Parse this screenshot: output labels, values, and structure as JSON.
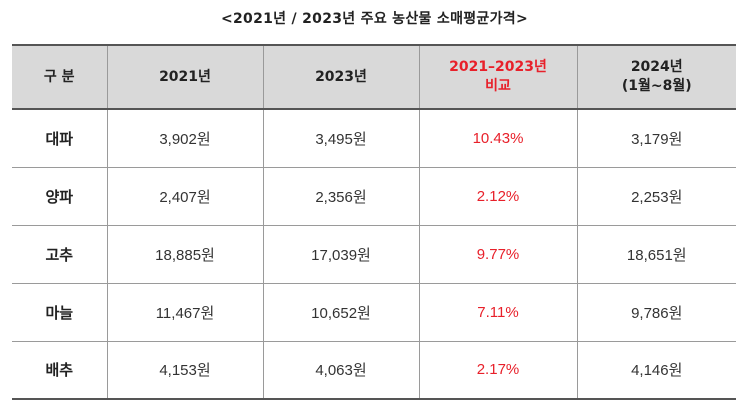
{
  "caption": "<2021년 / 2023년 주요 농산물 소매평균가격>",
  "table": {
    "headers": {
      "category": "구 분",
      "y2021": "2021년",
      "y2023": "2023년",
      "diff_line1": "2021–2023년",
      "diff_line2": "비교",
      "y2024_line1": "2024년",
      "y2024_line2": "(1월~8월)"
    },
    "rows": [
      {
        "name": "대파",
        "y2021": "3,902원",
        "y2023": "3,495원",
        "diff": "10.43%",
        "y2024": "3,179원"
      },
      {
        "name": "양파",
        "y2021": "2,407원",
        "y2023": "2,356원",
        "diff": "2.12%",
        "y2024": "2,253원"
      },
      {
        "name": "고추",
        "y2021": "18,885원",
        "y2023": "17,039원",
        "diff": "9.77%",
        "y2024": "18,651원"
      },
      {
        "name": "마늘",
        "y2021": "11,467원",
        "y2023": "10,652원",
        "diff": "7.11%",
        "y2024": "9,786원"
      },
      {
        "name": "배추",
        "y2021": "4,153원",
        "y2023": "4,063원",
        "diff": "2.17%",
        "y2024": "4,146원"
      }
    ]
  },
  "colors": {
    "header_bg": "#d9d9d9",
    "diff_text": "#e8202a",
    "border": "#9a9a9a"
  }
}
